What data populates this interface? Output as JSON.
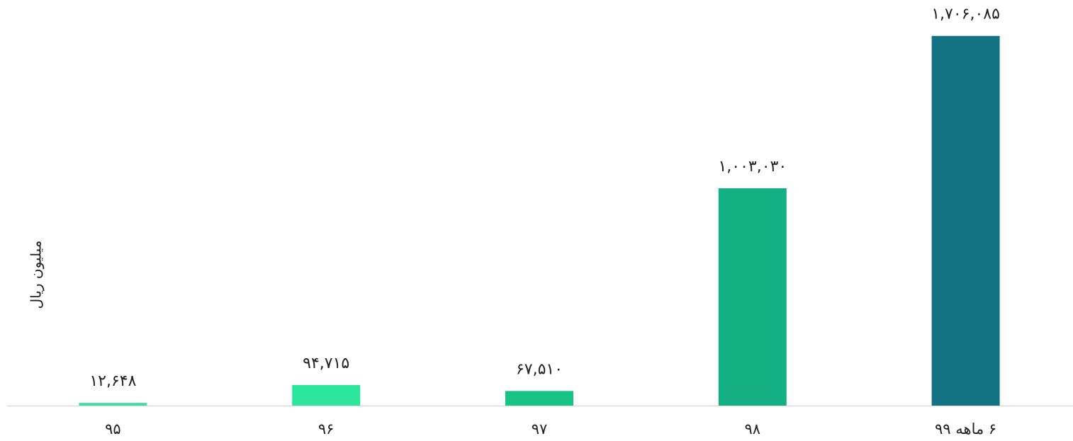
{
  "chart_data": {
    "type": "bar",
    "y_label": "میلیون ریال",
    "categories": [
      "۹۵",
      "۹۶",
      "۹۷",
      "۹۸",
      "۶ ماهه ۹۹"
    ],
    "values": [
      12648,
      94715,
      67510,
      1003030,
      1706085
    ],
    "value_labels": [
      "۱۲,۶۴۸",
      "۹۴,۷۱۵",
      "۶۷,۵۱۰",
      "۱,۰۰۳,۰۳۰",
      "۱,۷۰۶,۰۸۵"
    ],
    "colors": [
      "#3fdfa0",
      "#2ce69e",
      "#17c484",
      "#14b083",
      "#137383"
    ],
    "ylim": [
      0,
      1800000
    ]
  }
}
